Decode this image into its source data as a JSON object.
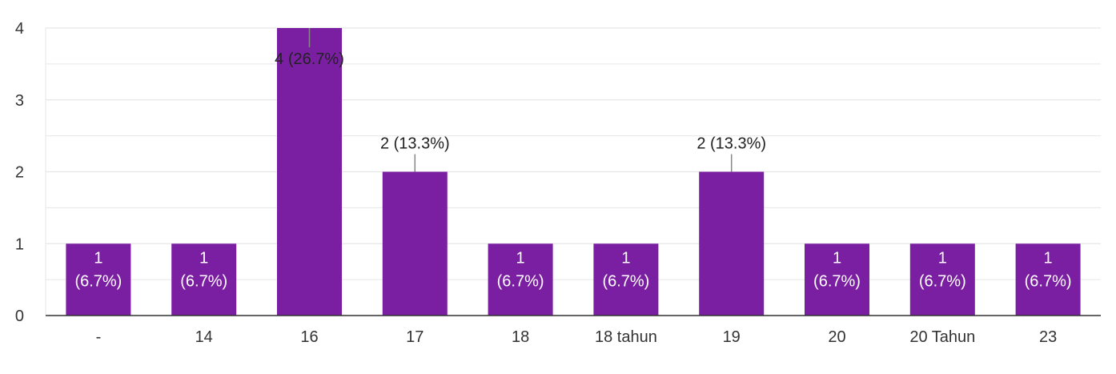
{
  "chart_data": {
    "type": "bar",
    "categories": [
      "-",
      "14",
      "16",
      "17",
      "18",
      "18 tahun",
      "19",
      "20",
      "20 Tahun",
      "23"
    ],
    "values": [
      1,
      1,
      4,
      2,
      1,
      1,
      2,
      1,
      1,
      1
    ],
    "value_labels": [
      "1 (6.7%)",
      "1 (6.7%)",
      "4 (26.7%)",
      "2 (13.3%)",
      "1 (6.7%)",
      "1 (6.7%)",
      "2 (13.3%)",
      "1 (6.7%)",
      "1 (6.7%)",
      "1 (6.7%)"
    ],
    "yticks": [
      "0",
      "1",
      "2",
      "3",
      "4"
    ],
    "ylim": [
      0,
      4
    ],
    "grid": true,
    "bar_color": "#7b1fa2",
    "label_on_bar_color": "#ffffff",
    "label_outside_color": "#222222",
    "grid_color": "#e6e6e6",
    "axis_color": "#333333"
  }
}
